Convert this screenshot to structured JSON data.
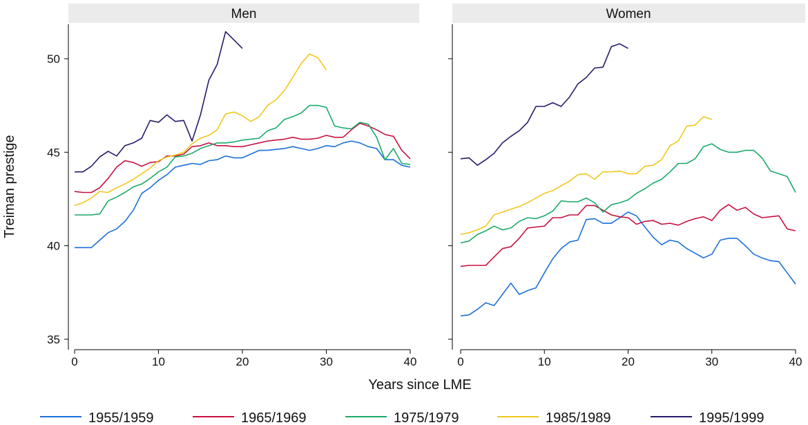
{
  "chart_data": {
    "type": "line",
    "ylabel": "Treiman prestige",
    "xlabel": "Years since LME",
    "xlim": [
      0,
      40
    ],
    "ylim": [
      34.5,
      51.8
    ],
    "xticks": [
      0,
      10,
      20,
      30,
      40
    ],
    "yticks": [
      35,
      40,
      45,
      50
    ],
    "grid": false,
    "legend_position": "bottom",
    "legend": [
      {
        "name": "1955/1959",
        "color": "#1a6fdc"
      },
      {
        "name": "1965/1969",
        "color": "#c8103e"
      },
      {
        "name": "1975/1979",
        "color": "#1aaa68"
      },
      {
        "name": "1985/1989",
        "color": "#f2c71b"
      },
      {
        "name": "1995/1999",
        "color": "#231b6b"
      }
    ],
    "panels": [
      {
        "title": "Men",
        "series": [
          {
            "name": "1955/1959",
            "color": "#1a6fdc",
            "values": [
              39.9,
              39.9,
              39.9,
              40.3,
              40.7,
              40.9,
              41.3,
              41.9,
              42.8,
              43.1,
              43.5,
              43.8,
              44.2,
              44.3,
              44.4,
              44.35,
              44.55,
              44.6,
              44.8,
              44.7,
              44.7,
              44.9,
              45.1,
              45.1,
              45.15,
              45.2,
              45.3,
              45.2,
              45.1,
              45.2,
              45.35,
              45.3,
              45.5,
              45.6,
              45.5,
              45.3,
              45.2,
              44.6,
              44.6,
              44.3,
              44.2
            ]
          },
          {
            "name": "1965/1969",
            "color": "#c8103e",
            "values": [
              42.9,
              42.85,
              42.85,
              43.1,
              43.6,
              44.2,
              44.55,
              44.45,
              44.25,
              44.45,
              44.5,
              44.8,
              44.8,
              44.9,
              45.3,
              45.35,
              45.5,
              45.35,
              45.35,
              45.3,
              45.3,
              45.4,
              45.5,
              45.6,
              45.65,
              45.7,
              45.8,
              45.7,
              45.7,
              45.75,
              45.9,
              45.8,
              45.8,
              46.2,
              46.55,
              46.4,
              46.2,
              45.95,
              45.85,
              45.1,
              44.65
            ]
          },
          {
            "name": "1975/1979",
            "color": "#1aaa68",
            "values": [
              41.65,
              41.65,
              41.65,
              41.7,
              42.4,
              42.6,
              42.85,
              43.15,
              43.3,
              43.6,
              43.95,
              44.2,
              44.75,
              44.8,
              44.95,
              45.2,
              45.35,
              45.5,
              45.5,
              45.55,
              45.65,
              45.7,
              45.75,
              46.15,
              46.3,
              46.75,
              46.9,
              47.1,
              47.5,
              47.5,
              47.4,
              46.4,
              46.3,
              46.25,
              46.6,
              46.5,
              45.8,
              44.6,
              45.2,
              44.4,
              44.35
            ]
          },
          {
            "name": "1985/1989",
            "color": "#f2c71b",
            "values": [
              42.15,
              42.3,
              42.55,
              42.9,
              42.85,
              43.1,
              43.3,
              43.55,
              43.85,
              44.15,
              44.55,
              44.75,
              44.85,
              45.0,
              45.45,
              45.75,
              45.9,
              46.2,
              47.05,
              47.15,
              46.95,
              46.65,
              46.9,
              47.5,
              47.8,
              48.3,
              49.0,
              49.75,
              50.25,
              50.05,
              49.4
            ]
          },
          {
            "name": "1995/1999",
            "color": "#231b6b",
            "values": [
              43.95,
              43.95,
              44.25,
              44.75,
              45.05,
              44.8,
              45.35,
              45.5,
              45.75,
              46.7,
              46.6,
              47.0,
              46.65,
              46.7,
              45.6,
              47.0,
              48.85,
              49.7,
              51.45,
              51.0,
              50.55
            ]
          }
        ]
      },
      {
        "title": "Women",
        "series": [
          {
            "name": "1955/1959",
            "color": "#1a6fdc",
            "values": [
              36.25,
              36.3,
              36.6,
              36.95,
              36.8,
              37.4,
              38.0,
              37.4,
              37.6,
              37.75,
              38.55,
              39.3,
              39.85,
              40.2,
              40.3,
              41.4,
              41.45,
              41.2,
              41.2,
              41.5,
              41.8,
              41.6,
              41.0,
              40.45,
              40.05,
              40.3,
              40.2,
              39.85,
              39.6,
              39.35,
              39.55,
              40.3,
              40.4,
              40.4,
              40.0,
              39.55,
              39.35,
              39.2,
              39.15,
              38.55,
              37.95
            ]
          },
          {
            "name": "1965/1969",
            "color": "#c8103e",
            "values": [
              38.9,
              38.95,
              38.95,
              38.95,
              39.4,
              39.85,
              39.95,
              40.4,
              40.95,
              41.0,
              41.05,
              41.5,
              41.5,
              41.65,
              41.65,
              42.15,
              42.15,
              41.9,
              41.65,
              41.55,
              41.5,
              41.15,
              41.3,
              41.35,
              41.15,
              41.2,
              41.1,
              41.3,
              41.45,
              41.55,
              41.35,
              41.9,
              42.2,
              41.9,
              42.05,
              41.7,
              41.5,
              41.55,
              41.6,
              40.9,
              40.8
            ]
          },
          {
            "name": "1975/1979",
            "color": "#1aaa68",
            "values": [
              40.15,
              40.25,
              40.6,
              40.8,
              41.05,
              40.85,
              40.95,
              41.3,
              41.5,
              41.45,
              41.6,
              41.85,
              42.4,
              42.35,
              42.35,
              42.55,
              42.3,
              41.8,
              42.2,
              42.3,
              42.45,
              42.8,
              43.05,
              43.35,
              43.55,
              43.95,
              44.4,
              44.4,
              44.65,
              45.3,
              45.45,
              45.15,
              45.0,
              45.0,
              45.1,
              45.1,
              44.7,
              44.0,
              43.85,
              43.7,
              42.85
            ]
          },
          {
            "name": "1985/1989",
            "color": "#f2c71b",
            "values": [
              40.6,
              40.7,
              40.85,
              41.05,
              41.65,
              41.8,
              41.95,
              42.1,
              42.3,
              42.55,
              42.8,
              42.95,
              43.2,
              43.45,
              43.8,
              43.85,
              43.55,
              43.95,
              43.95,
              44.0,
              43.85,
              43.85,
              44.25,
              44.3,
              44.6,
              45.35,
              45.6,
              46.4,
              46.45,
              46.9,
              46.75
            ]
          },
          {
            "name": "1995/1999",
            "color": "#231b6b",
            "values": [
              44.65,
              44.7,
              44.3,
              44.6,
              44.95,
              45.5,
              45.85,
              46.15,
              46.6,
              47.45,
              47.45,
              47.65,
              47.45,
              47.95,
              48.65,
              49.0,
              49.5,
              49.55,
              50.65,
              50.8,
              50.55
            ]
          }
        ]
      }
    ]
  }
}
